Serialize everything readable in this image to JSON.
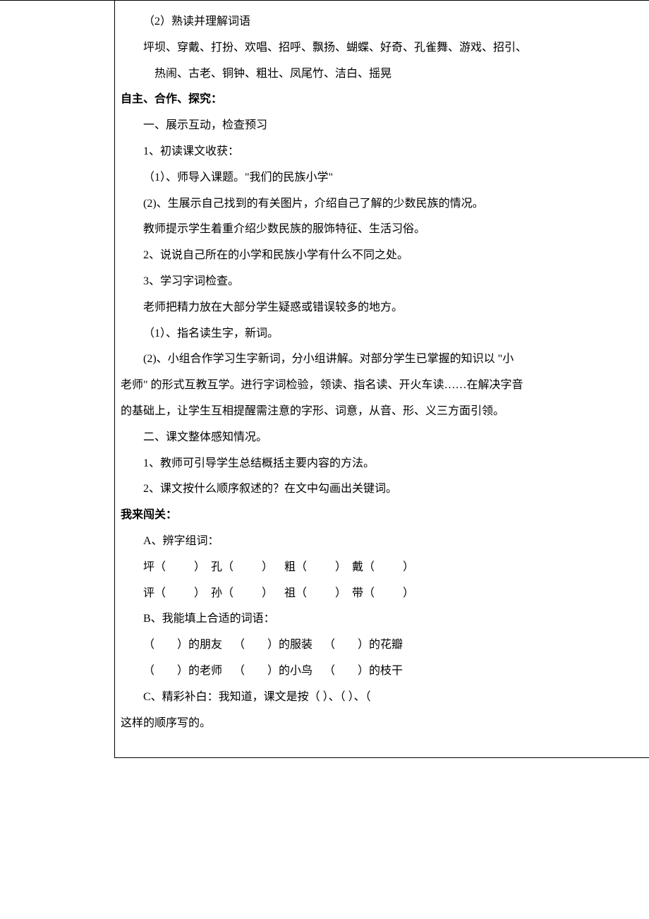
{
  "font": {
    "family": "SimSun",
    "size_pt": 12,
    "line_height": 2.3,
    "color": "#000000"
  },
  "page_bg": "#ffffff",
  "border_color": "#000000",
  "lines": {
    "l1": "（2）熟读并理解词语",
    "l2": "坪坝、穿戴、打扮、欢唱、招呼、飘扬、蝴蝶、好奇、孔雀舞、游戏、招引、",
    "l3": "热闹、古老、铜钟、粗壮、凤尾竹、洁白、摇晃",
    "h1": "自主、合作、探究：",
    "l4": "一、展示互动，检查预习",
    "l5": "1、初读课文收获：",
    "l6": "（1）、师导入课题。\"我们的民族小学\"",
    "l7": "  (2)、生展示自己找到的有关图片，介绍自己了解的少数民族的情况。",
    "l8": "教师提示学生着重介绍少数民族的服饰特征、生活习俗。",
    "l9": "2、说说自己所在的小学和民族小学有什么不同之处。 ",
    "l10": "3、学习字词检查。",
    "l11": "老师把精力放在大部分学生疑惑或错误较多的地方。",
    "l12": "（1）、指名读生字，新词。",
    "l13": "  (2)、小组合作学习生字新词，分小组讲解。对部分学生已掌握的知识以 \"小",
    "l14": "老师\" 的形式互教互学。进行字词检验，领读、指名读、开火车读……在解决字音",
    "l15": "的基础上，让学生互相提醒需注意的字形、词意，从音、形、义三方面引领。",
    "l16": "二、课文整体感知情况。",
    "l17": "1、教师可引导学生总结概括主要内容的方法。",
    "l18": "2、课文按什么顺序叙述的？在文中勾画出关键词。",
    "h2": "我来闯关：",
    "l19": "A、辨字组词：",
    "rowA1": "坪（          ）  孔（          ）    粗（          ）  戴（          ）",
    "rowA2": "评（          ）  孙（          ）    祖（          ）  带（          ）",
    "l20": "B、我能填上合适的词语：",
    "rowB1": "（        ）的朋友    （        ）的服装    （        ）的花瓣",
    "rowB2": "（        ）的老师    （        ）的小鸟    （        ）的枝干",
    "l21a": "C、精彩补白：我知道，课文是按（            ）、（            ）、（",
    "l21b": "这样的顺序写的。"
  }
}
